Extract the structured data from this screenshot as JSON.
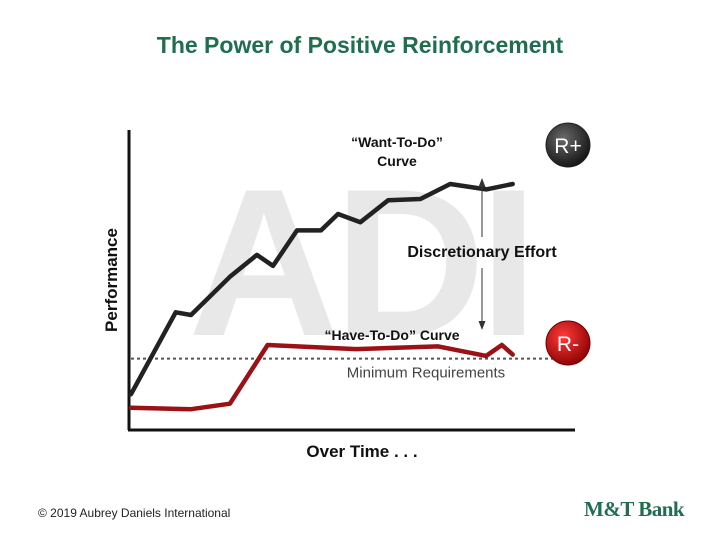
{
  "title": "The Power of Positive Reinforcement",
  "footer": {
    "copyright": "© 2019 Aubrey Daniels International",
    "logo": "M&T Bank"
  },
  "colors": {
    "title": "#1f6e4e",
    "want_line": "#222222",
    "have_line": "#9b1116",
    "r_plus_badge": "#3a3a3a",
    "r_minus_badge": "#c00000",
    "watermark": "#e6e6e6"
  },
  "chart_data": {
    "type": "line",
    "xlabel": "Over Time . . .",
    "ylabel": "Performance",
    "xlim": [
      0,
      100
    ],
    "ylim": [
      0,
      100
    ],
    "grid": false,
    "series": [
      {
        "name": "“Want-To-Do” Curve",
        "x": [
          0,
          10.8,
          14.5,
          23.9,
          30.4,
          34.3,
          40.1,
          45.9,
          50.0,
          55.4,
          62.1,
          69.9,
          77.1,
          85.8,
          92.2
        ],
        "y": [
          8,
          38,
          37,
          51,
          59,
          55,
          68,
          68,
          74,
          71,
          79,
          79.5,
          85,
          83,
          85
        ]
      },
      {
        "name": "“Have-To-Do” Curve",
        "x": [
          0,
          14.5,
          23.9,
          33.0,
          54.4,
          74.2,
          85.8,
          89.6,
          92.2
        ],
        "y": [
          3,
          2.5,
          4.5,
          26,
          24.5,
          25.5,
          22,
          26,
          22.5
        ]
      }
    ],
    "reference_line": {
      "label": "Minimum Requirements",
      "y": 21
    },
    "annotations": {
      "want_label_line1": "“Want-To-Do”",
      "want_label_line2": "Curve",
      "have_label": "“Have-To-Do” Curve",
      "gap_label": "Discretionary Effort",
      "r_plus": "R+",
      "r_minus": "R-",
      "watermark": "ADI"
    }
  }
}
